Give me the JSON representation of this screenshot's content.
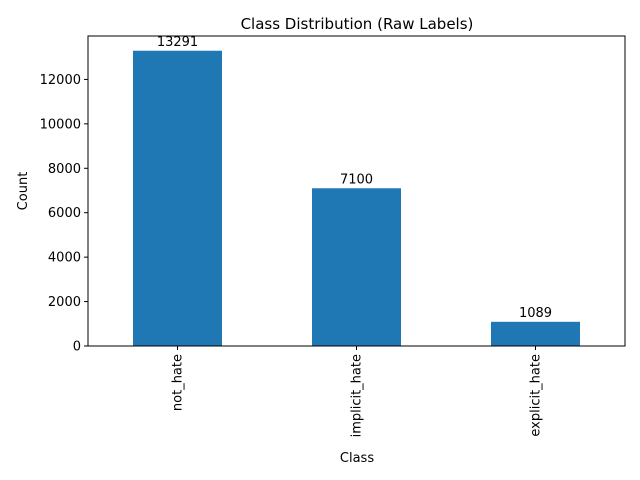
{
  "chart_data": {
    "type": "bar",
    "title": "Class Distribution (Raw Labels)",
    "xlabel": "Class",
    "ylabel": "Count",
    "categories": [
      "not_hate",
      "implicit_hate",
      "explicit_hate"
    ],
    "values": [
      13291,
      7100,
      1089
    ],
    "data_labels": [
      "13291",
      "7100",
      "1089"
    ],
    "ylim": [
      0,
      13955
    ],
    "yticks": [
      0,
      2000,
      4000,
      6000,
      8000,
      10000,
      12000
    ],
    "ytick_labels": [
      "0",
      "2000",
      "4000",
      "6000",
      "8000",
      "10000",
      "12000"
    ],
    "bar_color": "#1f77b4",
    "grid": false,
    "legend": "none",
    "xtick_rotation": "vertical"
  }
}
